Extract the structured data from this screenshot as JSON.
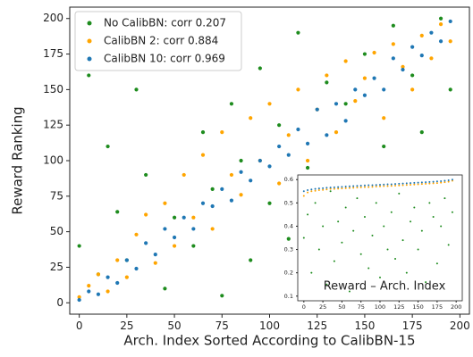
{
  "chart_data": [
    {
      "type": "scatter",
      "xlabel": "Arch. Index Sorted According to CalibBN-15",
      "ylabel": "Reward Ranking",
      "xlim": [
        -5,
        205
      ],
      "ylim": [
        -8,
        208
      ],
      "xticks": [
        0,
        25,
        50,
        75,
        100,
        125,
        150,
        175,
        200
      ],
      "yticks": [
        0,
        25,
        50,
        75,
        100,
        125,
        150,
        175,
        200
      ],
      "legend": "upper left",
      "series": [
        {
          "name": "No CalibBN: corr 0.207",
          "color": "#1e8c1e",
          "x": [
            0,
            5,
            10,
            15,
            20,
            25,
            30,
            35,
            40,
            45,
            50,
            55,
            60,
            65,
            70,
            75,
            80,
            85,
            90,
            95,
            100,
            105,
            110,
            115,
            120,
            125,
            130,
            135,
            140,
            145,
            150,
            155,
            160,
            165,
            170,
            175,
            180,
            185,
            190,
            195
          ],
          "values": [
            40,
            160,
            20,
            110,
            64,
            30,
            150,
            90,
            170,
            10,
            60,
            185,
            40,
            120,
            80,
            5,
            140,
            100,
            30,
            165,
            70,
            125,
            45,
            190,
            95,
            15,
            155,
            80,
            140,
            35,
            175,
            60,
            110,
            195,
            25,
            160,
            120,
            85,
            200,
            150
          ]
        },
        {
          "name": "CalibBN 2: corr 0.884",
          "color": "#ffa500",
          "x": [
            0,
            5,
            10,
            15,
            20,
            25,
            30,
            35,
            40,
            45,
            50,
            55,
            60,
            65,
            70,
            75,
            80,
            85,
            90,
            95,
            100,
            105,
            110,
            115,
            120,
            125,
            130,
            135,
            140,
            145,
            150,
            155,
            160,
            165,
            170,
            175,
            180,
            185,
            190,
            195
          ],
          "values": [
            4,
            12,
            20,
            8,
            30,
            18,
            48,
            62,
            28,
            70,
            40,
            90,
            60,
            104,
            52,
            120,
            90,
            76,
            130,
            100,
            140,
            84,
            118,
            150,
            100,
            136,
            160,
            120,
            170,
            142,
            158,
            176,
            130,
            182,
            166,
            150,
            188,
            172,
            196,
            184
          ]
        },
        {
          "name": "CalibBN 10: corr 0.969",
          "color": "#1f77b4",
          "x": [
            0,
            5,
            10,
            15,
            20,
            25,
            30,
            35,
            40,
            45,
            50,
            55,
            60,
            65,
            70,
            75,
            80,
            85,
            90,
            95,
            100,
            105,
            110,
            115,
            120,
            125,
            130,
            135,
            140,
            145,
            150,
            155,
            160,
            165,
            170,
            175,
            180,
            185,
            190,
            195
          ],
          "values": [
            2,
            8,
            6,
            18,
            14,
            30,
            24,
            42,
            34,
            52,
            46,
            60,
            52,
            70,
            68,
            80,
            72,
            92,
            86,
            100,
            96,
            110,
            104,
            122,
            112,
            136,
            118,
            140,
            128,
            150,
            146,
            158,
            150,
            172,
            164,
            180,
            174,
            190,
            184,
            198
          ]
        }
      ]
    },
    {
      "type": "scatter",
      "title": "Reward – Arch. Index",
      "xlim": [
        -8,
        208
      ],
      "ylim": [
        0.08,
        0.62
      ],
      "xticks": [
        0,
        25,
        50,
        75,
        100,
        125,
        150,
        175,
        200
      ],
      "yticks": [
        0.1,
        0.2,
        0.3,
        0.4,
        0.5,
        0.6
      ],
      "series": [
        {
          "color": "#1e8c1e",
          "x": [
            0,
            5,
            10,
            15,
            20,
            25,
            30,
            35,
            40,
            45,
            50,
            55,
            60,
            65,
            70,
            75,
            80,
            85,
            90,
            95,
            100,
            105,
            110,
            115,
            120,
            125,
            130,
            135,
            140,
            145,
            150,
            155,
            160,
            165,
            170,
            175,
            180,
            185,
            190,
            195
          ],
          "values": [
            0.35,
            0.45,
            0.2,
            0.5,
            0.3,
            0.4,
            0.15,
            0.55,
            0.25,
            0.42,
            0.33,
            0.48,
            0.12,
            0.38,
            0.52,
            0.28,
            0.44,
            0.22,
            0.36,
            0.5,
            0.18,
            0.4,
            0.3,
            0.46,
            0.26,
            0.54,
            0.34,
            0.2,
            0.42,
            0.48,
            0.3,
            0.38,
            0.16,
            0.5,
            0.44,
            0.24,
            0.4,
            0.52,
            0.32,
            0.46
          ]
        },
        {
          "color": "#ffa500",
          "x": [
            0,
            5,
            10,
            15,
            20,
            25,
            30,
            35,
            40,
            45,
            50,
            55,
            60,
            65,
            70,
            75,
            80,
            85,
            90,
            95,
            100,
            105,
            110,
            115,
            120,
            125,
            130,
            135,
            140,
            145,
            150,
            155,
            160,
            165,
            170,
            175,
            180,
            185,
            190,
            195
          ],
          "values": [
            0.53,
            0.545,
            0.55,
            0.552,
            0.555,
            0.556,
            0.558,
            0.56,
            0.56,
            0.561,
            0.562,
            0.563,
            0.564,
            0.565,
            0.566,
            0.567,
            0.568,
            0.568,
            0.569,
            0.57,
            0.571,
            0.572,
            0.572,
            0.573,
            0.574,
            0.575,
            0.576,
            0.577,
            0.578,
            0.579,
            0.58,
            0.581,
            0.582,
            0.583,
            0.584,
            0.585,
            0.587,
            0.589,
            0.591,
            0.595
          ]
        },
        {
          "color": "#1f77b4",
          "x": [
            0,
            5,
            10,
            15,
            20,
            25,
            30,
            35,
            40,
            45,
            50,
            55,
            60,
            65,
            70,
            75,
            80,
            85,
            90,
            95,
            100,
            105,
            110,
            115,
            120,
            125,
            130,
            135,
            140,
            145,
            150,
            155,
            160,
            165,
            170,
            175,
            180,
            185,
            190,
            195
          ],
          "values": [
            0.55,
            0.555,
            0.558,
            0.56,
            0.562,
            0.563,
            0.565,
            0.566,
            0.567,
            0.568,
            0.569,
            0.57,
            0.571,
            0.572,
            0.573,
            0.574,
            0.575,
            0.576,
            0.576,
            0.577,
            0.578,
            0.579,
            0.58,
            0.58,
            0.581,
            0.582,
            0.583,
            0.584,
            0.585,
            0.586,
            0.587,
            0.588,
            0.589,
            0.59,
            0.591,
            0.592,
            0.593,
            0.595,
            0.597,
            0.6
          ]
        }
      ]
    }
  ]
}
